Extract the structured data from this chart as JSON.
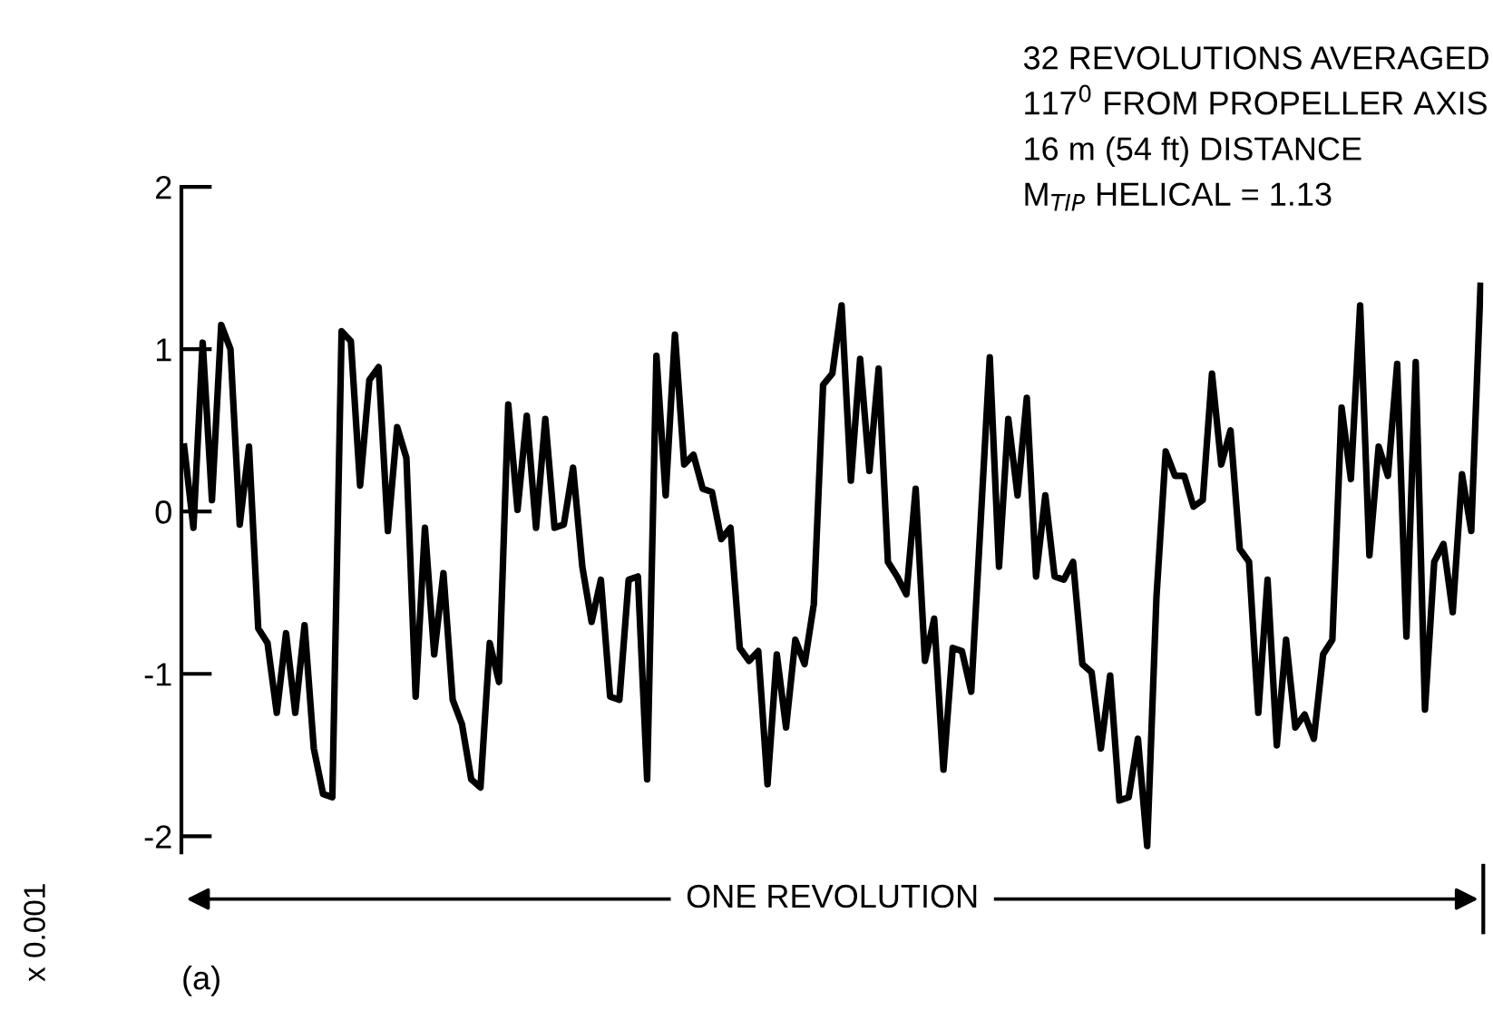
{
  "chart_data": {
    "type": "line",
    "ylabel": "x 0.001",
    "color": "#000000",
    "categories": [
      null,
      null,
      null,
      null,
      null,
      null,
      null,
      null,
      null,
      null,
      null,
      null,
      null,
      null,
      null,
      null,
      null,
      null,
      null,
      null,
      null,
      null,
      null,
      null,
      null,
      null,
      null,
      null,
      null,
      null,
      null,
      null,
      null,
      null,
      null,
      null,
      null,
      null,
      null,
      null,
      null,
      null,
      null,
      null,
      null,
      null,
      null,
      null,
      null,
      null,
      null,
      null,
      null,
      null,
      null,
      null,
      null,
      null,
      null,
      null,
      null,
      null,
      null,
      null,
      null,
      null,
      null,
      null,
      null,
      null,
      null,
      null,
      null,
      null,
      null,
      null,
      null,
      null,
      null,
      null,
      null,
      null,
      null,
      null,
      null,
      null,
      null,
      null,
      null,
      null,
      null,
      null,
      null,
      null,
      null,
      null,
      null,
      null,
      null,
      null,
      null,
      null,
      null,
      null,
      null,
      null,
      null,
      null,
      null,
      null,
      null,
      null,
      null,
      null,
      null,
      null,
      null,
      null,
      null,
      null,
      null,
      null,
      null,
      null,
      null,
      null,
      null,
      null,
      null,
      null,
      null,
      null,
      null,
      null,
      null,
      null,
      null,
      null,
      null,
      null,
      null
    ],
    "values": [
      0.4,
      -0.1,
      1.04,
      0.07,
      1.15,
      1.0,
      -0.08,
      0.4,
      -0.72,
      -0.81,
      -1.24,
      -0.75,
      -1.24,
      -0.7,
      -1.46,
      -1.74,
      -1.76,
      1.11,
      1.05,
      0.16,
      0.81,
      0.89,
      -0.12,
      0.52,
      0.33,
      -1.14,
      -0.1,
      -0.88,
      -0.38,
      -1.16,
      -1.31,
      -1.65,
      -1.7,
      -0.81,
      -1.05,
      0.66,
      0.01,
      0.59,
      -0.1,
      0.57,
      -0.1,
      -0.08,
      0.27,
      -0.34,
      -0.68,
      -0.42,
      -1.14,
      -1.16,
      -0.42,
      -0.4,
      -1.65,
      0.96,
      0.1,
      1.09,
      0.29,
      0.35,
      0.14,
      0.12,
      -0.17,
      -0.1,
      -0.84,
      -0.92,
      -0.86,
      -1.68,
      -0.88,
      -1.33,
      -0.79,
      -0.94,
      -0.57,
      0.78,
      0.85,
      1.27,
      0.19,
      0.94,
      0.25,
      0.88,
      -0.31,
      -0.4,
      -0.51,
      0.14,
      -0.92,
      -0.66,
      -1.59,
      -0.84,
      -0.86,
      -1.11,
      -0.08,
      0.95,
      -0.34,
      0.57,
      0.1,
      0.7,
      -0.4,
      0.1,
      -0.4,
      -0.42,
      -0.31,
      -0.94,
      -0.99,
      -1.46,
      -1.01,
      -1.78,
      -1.76,
      -1.4,
      -2.06,
      -0.53,
      0.37,
      0.22,
      0.22,
      0.03,
      0.07,
      0.85,
      0.29,
      0.5,
      -0.23,
      -0.31,
      -1.24,
      -0.42,
      -1.44,
      -0.79,
      -1.33,
      -1.25,
      -1.4,
      -0.88,
      -0.79,
      0.64,
      0.2,
      1.27,
      -0.27,
      0.4,
      0.22,
      0.91,
      -0.77,
      0.92,
      -1.22,
      -0.31,
      -0.2,
      -0.62,
      0.23,
      -0.12,
      1.39
    ],
    "ylim": [
      -2.1,
      2.0
    ],
    "yticks": [
      2,
      1,
      0,
      {
        "value": -1,
        "label": "-1"
      },
      {
        "value": -2,
        "label": "-2"
      }
    ],
    "grid": false,
    "marker": "none",
    "line_style": "solid",
    "tick_labels": "y",
    "annotations": [
      "32 REVOLUTIONS AVERAGED",
      "117$^{0}$ FROM PROPELLER AXIS",
      "16 m (54 ft) DISTANCE",
      "M$_{TIP}$ HELICAL = 1.13",
      "ONE REVOLUTION",
      "(a)"
    ]
  }
}
